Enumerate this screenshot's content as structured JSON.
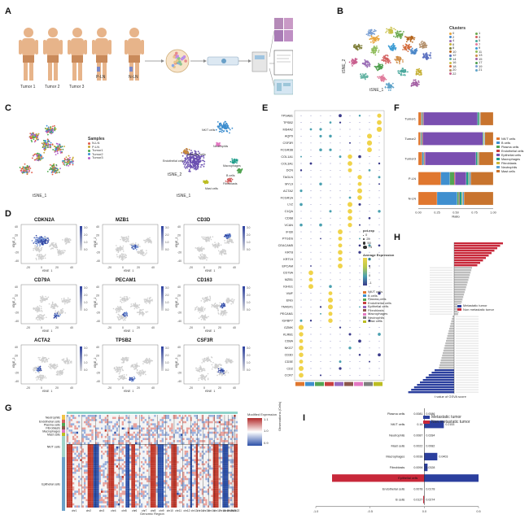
{
  "panel_labels": {
    "a": "A",
    "b": "B",
    "c": "C",
    "d": "D",
    "e": "E",
    "f": "F",
    "g": "G",
    "h": "H",
    "i": "I"
  },
  "panel_a": {
    "tumor_labels": [
      "Tumor 1",
      "Tumor 2",
      "Tumor 3"
    ],
    "p_ln": "P-LN",
    "n_ln": "N-LN"
  },
  "panel_b": {
    "legend_title": "Clusters",
    "clusters": [
      "0",
      "1",
      "2",
      "3",
      "4",
      "5",
      "6",
      "7",
      "8",
      "9",
      "10",
      "11",
      "12",
      "13",
      "14",
      "15",
      "16",
      "17",
      "18",
      "19",
      "20",
      "21",
      "22"
    ],
    "colors": [
      "#e8a33a",
      "#6aa84f",
      "#4a86c8",
      "#d35f5f",
      "#9b6fb6",
      "#48a89c",
      "#c7b23a",
      "#e07b9b",
      "#7f7f3a",
      "#3a9bd3",
      "#b5651d",
      "#8fbc5a",
      "#5a6fbf",
      "#d08f4a",
      "#63b3a3",
      "#a35fa3",
      "#c9c04a",
      "#4f9f4f",
      "#d36a3a",
      "#7a9fd3",
      "#b38f6a",
      "#5fa3c9",
      "#c95f8f"
    ],
    "xlabel": "tSNE_1",
    "ylabel": "tSNE_2"
  },
  "panel_c": {
    "legend_title": "Samples",
    "samples": [
      {
        "name": "N-LN",
        "color": "#e05a4a"
      },
      {
        "name": "P-LN",
        "color": "#c7a52f"
      },
      {
        "name": "Tumor1",
        "color": "#4aa84a"
      },
      {
        "name": "Tumor2",
        "color": "#3a8fd3"
      },
      {
        "name": "Tumor3",
        "color": "#b55fc9"
      }
    ],
    "celltype_labels": [
      "NK/T cells",
      "Endothelial cells",
      "Epithelial cells",
      "Macrophages",
      "B cells",
      "Fibroblasts",
      "Neutrophils",
      "Mast cells"
    ],
    "xlabel": "tSNE_1",
    "ylabel": "tSNE_2"
  },
  "panel_d": {
    "genes": [
      "CDKN2A",
      "MZB1",
      "CD3D",
      "CD79A",
      "PECAM1",
      "CD163",
      "ACTA2",
      "TPSB2",
      "CSF3R"
    ],
    "ticks_x": [
      "-20",
      "0",
      "20",
      "40"
    ],
    "ticks_y": [
      "40",
      "20",
      "0",
      "-20",
      "-40"
    ],
    "scale_ticks": [
      "3.0",
      "2.5",
      "2.0",
      "1.5",
      "1.0",
      "0.5",
      "0.0"
    ],
    "xlabel": "tSNE_1",
    "ylabel": "tSNE_2"
  },
  "panel_e": {
    "genes": [
      "TPSAB1",
      "TPSB2",
      "MS4A2",
      "AQP9",
      "CSF3R",
      "FCGR3B",
      "COL1A1",
      "COL3A1",
      "DCN",
      "TAGLN",
      "MYL9",
      "ACTA2",
      "FCGR1A",
      "LYZ",
      "C1QA",
      "CD68",
      "VCAN",
      "IFI30",
      "PTGDS",
      "CEACAM5",
      "KRT8",
      "KRT19",
      "EPCAM",
      "CD79A",
      "MZB1",
      "IGHG1",
      "VWF",
      "ENG",
      "TM4SF1",
      "PECAM1",
      "IGFBP7",
      "GZMK",
      "KLRB1",
      "CD8A",
      "NKG7",
      "CD3D",
      "CD3E",
      "CD2",
      "CCR7"
    ],
    "legend_pct_title": "pct.exp",
    "pct_levels": [
      "0",
      "25",
      "50",
      "75"
    ],
    "legend_avg_title": "Average Expression",
    "avg_ticks": [
      "2",
      "1",
      "0",
      "-1"
    ],
    "celltypes": [
      {
        "name": "NK/T cells",
        "color": "#e0772f"
      },
      {
        "name": "B cells",
        "color": "#3f8fcf"
      },
      {
        "name": "Plasma cells",
        "color": "#53a453"
      },
      {
        "name": "Endothelial cells",
        "color": "#c83f3f"
      },
      {
        "name": "Epithelial cells",
        "color": "#9468bd"
      },
      {
        "name": "Fibroblasts",
        "color": "#8c564b"
      },
      {
        "name": "Macrophages",
        "color": "#e377c2"
      },
      {
        "name": "Neutrophils",
        "color": "#7f7f7f"
      },
      {
        "name": "Mast cells",
        "color": "#bcbd22"
      }
    ]
  },
  "panel_f": {
    "chart_data": {
      "type": "bar",
      "orientation": "horizontal",
      "stacked": true,
      "categories": [
        "Tumor1",
        "Tumor2",
        "Tumor3",
        "P-LN",
        "N-LN"
      ],
      "xlabel": "Ratio",
      "xlim": [
        0,
        1
      ],
      "xticks": [
        "0.00",
        "0.25",
        "0.50",
        "0.75",
        "1.00"
      ],
      "series": [
        {
          "name": "NK/T cells",
          "color": "#e0772f",
          "values": [
            0.04,
            0.03,
            0.05,
            0.3,
            0.25
          ]
        },
        {
          "name": "B cells",
          "color": "#3f8fcf",
          "values": [
            0.01,
            0.01,
            0.02,
            0.12,
            0.27
          ]
        },
        {
          "name": "Plasma cells",
          "color": "#53a453",
          "values": [
            0.01,
            0.01,
            0.01,
            0.06,
            0.02
          ]
        },
        {
          "name": "Endothelial cells",
          "color": "#c83f3f",
          "values": [
            0.01,
            0.01,
            0.01,
            0.01,
            0.01
          ]
        },
        {
          "name": "Epithelial cells",
          "color": "#7a4fb0",
          "values": [
            0.72,
            0.8,
            0.68,
            0.15,
            0.0
          ]
        },
        {
          "name": "Macrophages",
          "color": "#1f9d8a",
          "values": [
            0.02,
            0.01,
            0.02,
            0.03,
            0.03
          ]
        },
        {
          "name": "Fibroblasts",
          "color": "#c9b53a",
          "values": [
            0.01,
            0.01,
            0.01,
            0.01,
            0.01
          ]
        },
        {
          "name": "Neutrophils",
          "color": "#5aa2d4",
          "values": [
            0.01,
            0.01,
            0.01,
            0.02,
            0.02
          ]
        },
        {
          "name": "Mast cells",
          "color": "#c8742e",
          "values": [
            0.17,
            0.11,
            0.19,
            0.3,
            0.39
          ]
        }
      ]
    }
  },
  "panel_g": {
    "row_groups": [
      "Neutrophils",
      "Endothelial cells",
      "Plasma cells",
      "Fibroblasts",
      "Macrophages",
      "Mast cells",
      "NK/T cells",
      "Epithelial cells"
    ],
    "chromosomes": [
      "chr1",
      "chr2",
      "chr3",
      "chr4",
      "chr5",
      "chr6",
      "chr7",
      "chr8",
      "chr9",
      "chr10",
      "chr11",
      "chr12",
      "chr13",
      "chr14",
      "chr15",
      "chr16",
      "chr17",
      "chr18",
      "chr19",
      "chr20",
      "chr21",
      "chr22"
    ],
    "xlabel": "Genomic Region",
    "legend_title": "Modified Expression",
    "legend_ticks": [
      "1.1",
      "1.0",
      "0.9"
    ],
    "side_label": "Observations (Cells)"
  },
  "panel_h": {
    "xlabel": "t value of GSVA score",
    "legend": [
      {
        "name": "Metastatic tumor",
        "color": "#2b3f9e"
      },
      {
        "name": "Non metastatic tumor",
        "color": "#c8283a"
      }
    ]
  },
  "panel_i": {
    "chart_data": {
      "type": "bar",
      "orientation": "horizontal",
      "categories": [
        "Plasma cells",
        "NK/T cells",
        "Neutrophils",
        "Mast cells",
        "Macrophages",
        "Fibroblasts",
        "Epithelial cells",
        "Endothelial cells",
        "B cells"
      ],
      "values": [
        0.0,
        0.18,
        0.0,
        0.0,
        0.12,
        0.03,
        -0.85,
        0.0,
        -0.01
      ],
      "right_values": [
        "0.0086",
        "0.2153",
        "0.0284",
        "0.0082",
        "0.0403",
        "0.0328",
        "",
        "0.0178",
        "0.0274"
      ],
      "left_values": [
        "0.0081",
        "0.16",
        "0.0087",
        "0.0022",
        "0.0038",
        "0.0094",
        "",
        "0.0078",
        "0.0127"
      ],
      "xlim": [
        -1.0,
        0.5
      ],
      "xticks": [
        "-1.0",
        "-0.5",
        "0.0",
        "0.5"
      ],
      "series": [
        {
          "name": "Metastatic tumor",
          "color": "#2b3f9e"
        },
        {
          "name": "Non metastatic tumor",
          "color": "#c8283a"
        }
      ]
    }
  }
}
